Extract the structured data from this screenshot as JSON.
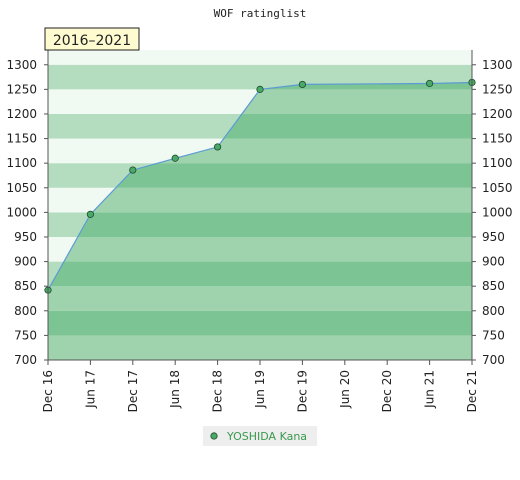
{
  "chart_data": {
    "type": "area",
    "title": "WOF ratinglist",
    "period_label": "2016–2021",
    "x_ticks": [
      "Dec 16",
      "Jun 17",
      "Dec 17",
      "Jun 18",
      "Dec 18",
      "Jun 19",
      "Dec 19",
      "Jun 20",
      "Dec 20",
      "Jun 21",
      "Dec 21"
    ],
    "y_ticks": [
      700,
      750,
      800,
      850,
      900,
      950,
      1000,
      1050,
      1100,
      1150,
      1200,
      1250,
      1300
    ],
    "ylim": [
      700,
      1330
    ],
    "grid": false,
    "legend_position": "bottom-center",
    "series": [
      {
        "name": "YOSHIDA Kana",
        "x": [
          "Dec 16",
          "Jun 17",
          "Dec 17",
          "Jun 18",
          "Dec 18",
          "Jun 19",
          "Dec 19",
          "Jun 21",
          "Dec 21"
        ],
        "values": [
          842,
          996,
          1086,
          1110,
          1133,
          1250,
          1260,
          1262,
          1264
        ]
      }
    ]
  },
  "colors": {
    "area_band_dark": "#7cc494",
    "area_band_light": "#9ed3ad",
    "background_band_dark": "#b4ddbf",
    "background_band_light": "#f1f9f3",
    "line": "#5b9bd5",
    "marker": "#4aa868",
    "period_box": "#fffbd0",
    "legend_marker": "#4aa868"
  }
}
